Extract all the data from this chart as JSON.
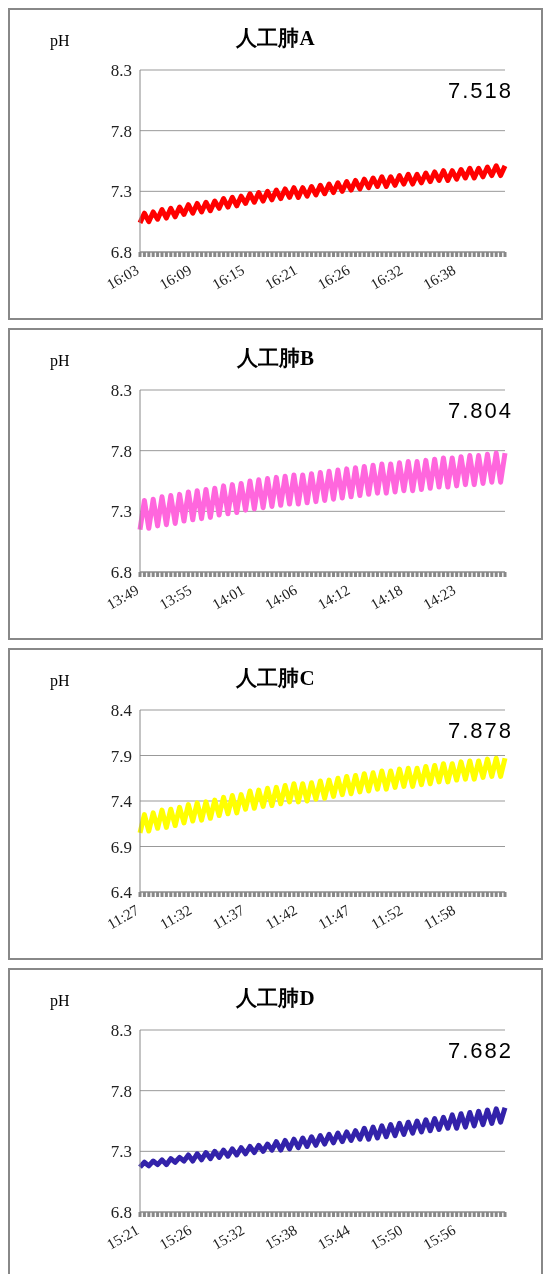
{
  "chart_data": [
    {
      "type": "line",
      "title": "人工肺A",
      "ylabel": "pH",
      "grid": "y",
      "marker": "none",
      "ylim": [
        6.8,
        8.3
      ],
      "yticks": [
        6.8,
        7.3,
        7.8,
        8.3
      ],
      "annotations": [
        "7.518"
      ],
      "categories": [
        "16:03",
        null,
        null,
        null,
        null,
        null,
        null,
        null,
        null,
        null,
        null,
        null,
        "16:09",
        null,
        null,
        null,
        null,
        null,
        null,
        null,
        null,
        null,
        null,
        null,
        "16:15",
        null,
        null,
        null,
        null,
        null,
        null,
        null,
        null,
        null,
        null,
        null,
        "16:21",
        null,
        null,
        null,
        null,
        null,
        null,
        null,
        null,
        null,
        null,
        null,
        "16:26",
        null,
        null,
        null,
        null,
        null,
        null,
        null,
        null,
        null,
        null,
        null,
        "16:32",
        null,
        null,
        null,
        null,
        null,
        null,
        null,
        null,
        null,
        null,
        null,
        "16:38",
        null,
        null,
        null,
        null,
        null,
        null,
        null,
        null,
        null,
        null,
        null
      ],
      "series": [
        {
          "color": "#ff0000",
          "values": [
            7.04,
            7.12,
            7.05,
            7.13,
            7.07,
            7.15,
            7.08,
            7.16,
            7.09,
            7.17,
            7.11,
            7.19,
            7.12,
            7.2,
            7.13,
            7.21,
            7.14,
            7.22,
            7.16,
            7.24,
            7.17,
            7.25,
            7.18,
            7.26,
            7.2,
            7.28,
            7.21,
            7.29,
            7.22,
            7.3,
            7.23,
            7.31,
            7.24,
            7.32,
            7.25,
            7.33,
            7.25,
            7.33,
            7.26,
            7.34,
            7.27,
            7.35,
            7.28,
            7.36,
            7.29,
            7.37,
            7.3,
            7.38,
            7.31,
            7.39,
            7.32,
            7.4,
            7.33,
            7.41,
            7.34,
            7.42,
            7.34,
            7.42,
            7.35,
            7.43,
            7.36,
            7.44,
            7.36,
            7.44,
            7.37,
            7.45,
            7.38,
            7.46,
            7.39,
            7.47,
            7.39,
            7.47,
            7.4,
            7.48,
            7.41,
            7.49,
            7.41,
            7.49,
            7.42,
            7.5,
            7.43,
            7.51,
            7.43,
            7.51
          ]
        }
      ]
    },
    {
      "type": "line",
      "title": "人工肺B",
      "ylabel": "pH",
      "grid": "y",
      "marker": "none",
      "ylim": [
        6.8,
        8.3
      ],
      "yticks": [
        6.8,
        7.3,
        7.8,
        8.3
      ],
      "annotations": [
        "7.804"
      ],
      "categories": [
        "13:49",
        null,
        null,
        null,
        null,
        null,
        null,
        null,
        null,
        null,
        null,
        null,
        "13:55",
        null,
        null,
        null,
        null,
        null,
        null,
        null,
        null,
        null,
        null,
        null,
        "14:01",
        null,
        null,
        null,
        null,
        null,
        null,
        null,
        null,
        null,
        null,
        null,
        "14:06",
        null,
        null,
        null,
        null,
        null,
        null,
        null,
        null,
        null,
        null,
        null,
        "14:12",
        null,
        null,
        null,
        null,
        null,
        null,
        null,
        null,
        null,
        null,
        null,
        "14:18",
        null,
        null,
        null,
        null,
        null,
        null,
        null,
        null,
        null,
        null,
        null,
        "14:23",
        null,
        null,
        null,
        null,
        null,
        null,
        null,
        null,
        null,
        null,
        null
      ],
      "series": [
        {
          "color": "#ff66dd",
          "values": [
            7.15,
            7.39,
            7.16,
            7.4,
            7.18,
            7.42,
            7.19,
            7.43,
            7.2,
            7.44,
            7.22,
            7.46,
            7.23,
            7.47,
            7.24,
            7.48,
            7.25,
            7.49,
            7.27,
            7.51,
            7.28,
            7.52,
            7.29,
            7.53,
            7.31,
            7.55,
            7.32,
            7.56,
            7.33,
            7.57,
            7.34,
            7.58,
            7.35,
            7.59,
            7.36,
            7.6,
            7.36,
            7.6,
            7.37,
            7.61,
            7.38,
            7.62,
            7.39,
            7.63,
            7.4,
            7.64,
            7.41,
            7.65,
            7.42,
            7.66,
            7.43,
            7.67,
            7.44,
            7.68,
            7.45,
            7.69,
            7.45,
            7.69,
            7.46,
            7.7,
            7.47,
            7.71,
            7.47,
            7.71,
            7.48,
            7.72,
            7.49,
            7.73,
            7.5,
            7.74,
            7.5,
            7.74,
            7.51,
            7.75,
            7.52,
            7.76,
            7.52,
            7.76,
            7.53,
            7.77,
            7.54,
            7.78,
            7.54,
            7.78
          ]
        }
      ]
    },
    {
      "type": "line",
      "title": "人工肺C",
      "ylabel": "pH",
      "grid": "y",
      "marker": "none",
      "ylim": [
        6.4,
        8.4
      ],
      "yticks": [
        6.4,
        6.9,
        7.4,
        7.9,
        8.4
      ],
      "annotations": [
        "7.878"
      ],
      "categories": [
        "11:27",
        null,
        null,
        null,
        null,
        null,
        null,
        null,
        null,
        null,
        null,
        null,
        "11:32",
        null,
        null,
        null,
        null,
        null,
        null,
        null,
        null,
        null,
        null,
        null,
        "11:37",
        null,
        null,
        null,
        null,
        null,
        null,
        null,
        null,
        null,
        null,
        null,
        "11:42",
        null,
        null,
        null,
        null,
        null,
        null,
        null,
        null,
        null,
        null,
        null,
        "11:47",
        null,
        null,
        null,
        null,
        null,
        null,
        null,
        null,
        null,
        null,
        null,
        "11:52",
        null,
        null,
        null,
        null,
        null,
        null,
        null,
        null,
        null,
        null,
        null,
        "11:58",
        null,
        null,
        null,
        null,
        null,
        null,
        null,
        null,
        null,
        null,
        null
      ],
      "series": [
        {
          "color": "#ffff00",
          "values": [
            7.05,
            7.25,
            7.07,
            7.27,
            7.1,
            7.3,
            7.11,
            7.31,
            7.13,
            7.33,
            7.16,
            7.36,
            7.18,
            7.38,
            7.19,
            7.39,
            7.21,
            7.41,
            7.24,
            7.44,
            7.26,
            7.46,
            7.27,
            7.47,
            7.31,
            7.51,
            7.32,
            7.52,
            7.34,
            7.54,
            7.35,
            7.55,
            7.37,
            7.57,
            7.39,
            7.59,
            7.39,
            7.59,
            7.4,
            7.6,
            7.42,
            7.62,
            7.43,
            7.63,
            7.45,
            7.65,
            7.47,
            7.67,
            7.48,
            7.68,
            7.5,
            7.7,
            7.51,
            7.71,
            7.53,
            7.73,
            7.53,
            7.73,
            7.55,
            7.75,
            7.56,
            7.76,
            7.56,
            7.76,
            7.58,
            7.78,
            7.59,
            7.79,
            7.61,
            7.81,
            7.61,
            7.81,
            7.63,
            7.83,
            7.64,
            7.84,
            7.64,
            7.84,
            7.66,
            7.86,
            7.67,
            7.87,
            7.67,
            7.87
          ]
        }
      ]
    },
    {
      "type": "line",
      "title": "人工肺D",
      "ylabel": "pH",
      "grid": "y",
      "marker": "none",
      "ylim": [
        6.8,
        8.3
      ],
      "yticks": [
        6.8,
        7.3,
        7.8,
        8.3
      ],
      "annotations": [
        "7.682"
      ],
      "categories": [
        "15:21",
        null,
        null,
        null,
        null,
        null,
        null,
        null,
        null,
        null,
        null,
        null,
        "15:26",
        null,
        null,
        null,
        null,
        null,
        null,
        null,
        null,
        null,
        null,
        null,
        "15:32",
        null,
        null,
        null,
        null,
        null,
        null,
        null,
        null,
        null,
        null,
        null,
        "15:38",
        null,
        null,
        null,
        null,
        null,
        null,
        null,
        null,
        null,
        null,
        null,
        "15:44",
        null,
        null,
        null,
        null,
        null,
        null,
        null,
        null,
        null,
        null,
        null,
        "15:50",
        null,
        null,
        null,
        null,
        null,
        null,
        null,
        null,
        null,
        null,
        null,
        "15:56",
        null,
        null,
        null,
        null,
        null,
        null,
        null,
        null,
        null,
        null,
        null
      ],
      "series": [
        {
          "color": "#3322aa",
          "values": [
            7.17,
            7.21,
            7.18,
            7.22,
            7.19,
            7.23,
            7.19,
            7.24,
            7.21,
            7.25,
            7.22,
            7.27,
            7.22,
            7.28,
            7.23,
            7.29,
            7.24,
            7.3,
            7.25,
            7.31,
            7.26,
            7.32,
            7.27,
            7.33,
            7.28,
            7.34,
            7.29,
            7.35,
            7.3,
            7.36,
            7.31,
            7.38,
            7.31,
            7.39,
            7.32,
            7.4,
            7.33,
            7.41,
            7.34,
            7.42,
            7.35,
            7.43,
            7.36,
            7.44,
            7.37,
            7.45,
            7.38,
            7.46,
            7.39,
            7.47,
            7.4,
            7.49,
            7.4,
            7.5,
            7.41,
            7.51,
            7.42,
            7.52,
            7.43,
            7.53,
            7.44,
            7.54,
            7.45,
            7.55,
            7.46,
            7.56,
            7.47,
            7.57,
            7.48,
            7.58,
            7.49,
            7.6,
            7.49,
            7.61,
            7.5,
            7.62,
            7.51,
            7.63,
            7.52,
            7.64,
            7.53,
            7.65,
            7.54,
            7.66
          ]
        }
      ]
    }
  ]
}
